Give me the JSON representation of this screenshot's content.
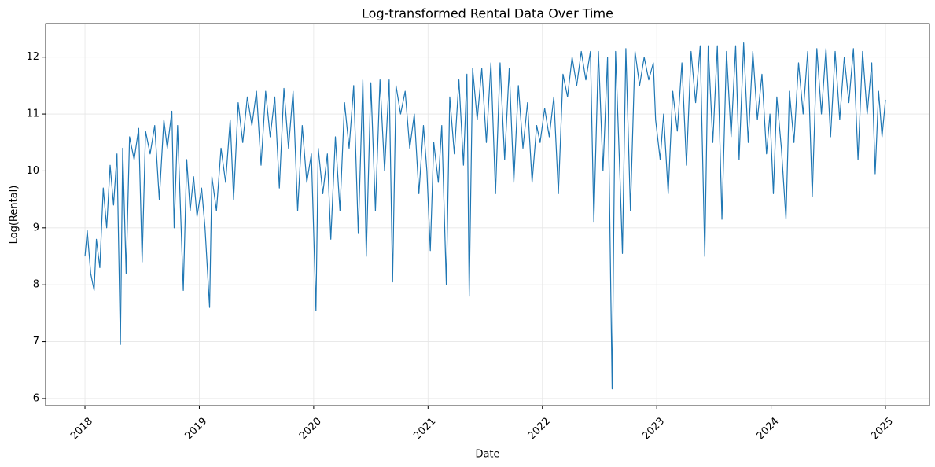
{
  "chart_data": {
    "type": "line",
    "title": "Log-transformed Rental Data Over Time",
    "x_label": "Date",
    "y_label": "Log(Rental)",
    "color": "#1f77b4",
    "grid": true,
    "xlim": [
      2017.656,
      2025.385
    ],
    "xticks": [
      2018,
      2019,
      2020,
      2021,
      2022,
      2023,
      2024,
      2025
    ],
    "ylim": [
      5.875,
      12.59
    ],
    "yticks": [
      6,
      7,
      8,
      9,
      10,
      11,
      12
    ],
    "x": [
      2018.0,
      2018.02,
      2018.05,
      2018.08,
      2018.1,
      2018.13,
      2018.16,
      2018.19,
      2018.22,
      2018.25,
      2018.28,
      2018.31,
      2018.33,
      2018.36,
      2018.39,
      2018.43,
      2018.47,
      2018.5,
      2018.53,
      2018.57,
      2018.61,
      2018.65,
      2018.69,
      2018.72,
      2018.76,
      2018.78,
      2018.81,
      2018.86,
      2018.89,
      2018.92,
      2018.95,
      2018.98,
      2019.02,
      2019.05,
      2019.09,
      2019.11,
      2019.15,
      2019.19,
      2019.23,
      2019.27,
      2019.3,
      2019.34,
      2019.38,
      2019.42,
      2019.46,
      2019.5,
      2019.54,
      2019.58,
      2019.62,
      2019.66,
      2019.7,
      2019.74,
      2019.78,
      2019.82,
      2019.86,
      2019.9,
      2019.94,
      2019.98,
      2020.02,
      2020.04,
      2020.08,
      2020.12,
      2020.15,
      2020.19,
      2020.23,
      2020.27,
      2020.31,
      2020.35,
      2020.39,
      2020.43,
      2020.46,
      2020.5,
      2020.54,
      2020.58,
      2020.62,
      2020.66,
      2020.69,
      2020.72,
      2020.76,
      2020.8,
      2020.84,
      2020.88,
      2020.92,
      2020.96,
      2020.99,
      2021.02,
      2021.05,
      2021.09,
      2021.12,
      2021.16,
      2021.19,
      2021.23,
      2021.27,
      2021.31,
      2021.34,
      2021.36,
      2021.39,
      2021.43,
      2021.47,
      2021.51,
      2021.55,
      2021.59,
      2021.63,
      2021.67,
      2021.71,
      2021.75,
      2021.79,
      2021.83,
      2021.87,
      2021.91,
      2021.95,
      2021.98,
      2022.02,
      2022.06,
      2022.1,
      2022.14,
      2022.18,
      2022.22,
      2022.26,
      2022.3,
      2022.34,
      2022.38,
      2022.42,
      2022.45,
      2022.49,
      2022.53,
      2022.57,
      2022.61,
      2022.64,
      2022.68,
      2022.7,
      2022.73,
      2022.77,
      2022.81,
      2022.85,
      2022.89,
      2022.93,
      2022.97,
      2022.99,
      2023.03,
      2023.06,
      2023.1,
      2023.14,
      2023.18,
      2023.22,
      2023.26,
      2023.3,
      2023.34,
      2023.38,
      2023.42,
      2023.45,
      2023.49,
      2023.53,
      2023.57,
      2023.61,
      2023.65,
      2023.69,
      2023.72,
      2023.76,
      2023.8,
      2023.84,
      2023.88,
      2023.92,
      2023.96,
      2023.99,
      2024.02,
      2024.05,
      2024.09,
      2024.13,
      2024.16,
      2024.2,
      2024.24,
      2024.28,
      2024.32,
      2024.36,
      2024.4,
      2024.44,
      2024.48,
      2024.52,
      2024.56,
      2024.6,
      2024.64,
      2024.68,
      2024.72,
      2024.76,
      2024.8,
      2024.84,
      2024.88,
      2024.91,
      2024.94,
      2024.97,
      2025.0
    ],
    "values": [
      8.5,
      8.95,
      8.2,
      7.9,
      8.8,
      8.3,
      9.7,
      9.0,
      10.1,
      9.4,
      10.3,
      6.95,
      10.4,
      8.2,
      10.6,
      10.2,
      10.75,
      8.4,
      10.7,
      10.3,
      10.8,
      9.5,
      10.9,
      10.4,
      11.05,
      9.0,
      10.8,
      7.9,
      10.2,
      9.3,
      9.9,
      9.2,
      9.7,
      9.0,
      7.6,
      9.9,
      9.3,
      10.4,
      9.8,
      10.9,
      9.5,
      11.2,
      10.5,
      11.3,
      10.8,
      11.4,
      10.1,
      11.4,
      10.6,
      11.3,
      9.7,
      11.45,
      10.4,
      11.4,
      9.3,
      10.8,
      9.8,
      10.3,
      7.55,
      10.4,
      9.6,
      10.3,
      8.8,
      10.6,
      9.3,
      11.2,
      10.4,
      11.5,
      8.9,
      11.6,
      8.5,
      11.55,
      9.3,
      11.6,
      10.0,
      11.6,
      8.05,
      11.5,
      11.0,
      11.4,
      10.4,
      11.0,
      9.6,
      10.8,
      10.0,
      8.6,
      10.5,
      9.8,
      10.8,
      8.0,
      11.3,
      10.3,
      11.6,
      10.1,
      11.7,
      7.8,
      11.8,
      10.9,
      11.8,
      10.5,
      11.9,
      9.6,
      11.9,
      10.2,
      11.8,
      9.8,
      11.5,
      10.4,
      11.2,
      9.8,
      10.8,
      10.5,
      11.1,
      10.6,
      11.3,
      9.6,
      11.7,
      11.3,
      12.0,
      11.5,
      12.1,
      11.6,
      12.1,
      9.1,
      12.1,
      10.0,
      12.0,
      6.17,
      12.1,
      9.8,
      8.55,
      12.15,
      9.3,
      12.1,
      11.5,
      12.0,
      11.6,
      11.9,
      10.9,
      10.2,
      11.0,
      9.6,
      11.4,
      10.7,
      11.9,
      10.1,
      12.1,
      11.2,
      12.2,
      8.5,
      12.2,
      10.5,
      12.2,
      9.15,
      12.1,
      10.6,
      12.2,
      10.2,
      12.25,
      10.5,
      12.1,
      10.9,
      11.7,
      10.3,
      11.0,
      9.6,
      11.3,
      10.4,
      9.15,
      11.4,
      10.5,
      11.9,
      11.0,
      12.1,
      9.55,
      12.15,
      11.0,
      12.15,
      10.6,
      12.1,
      10.9,
      12.0,
      11.2,
      12.15,
      10.2,
      12.1,
      11.0,
      11.9,
      9.95,
      11.4,
      10.6,
      11.25
    ]
  }
}
